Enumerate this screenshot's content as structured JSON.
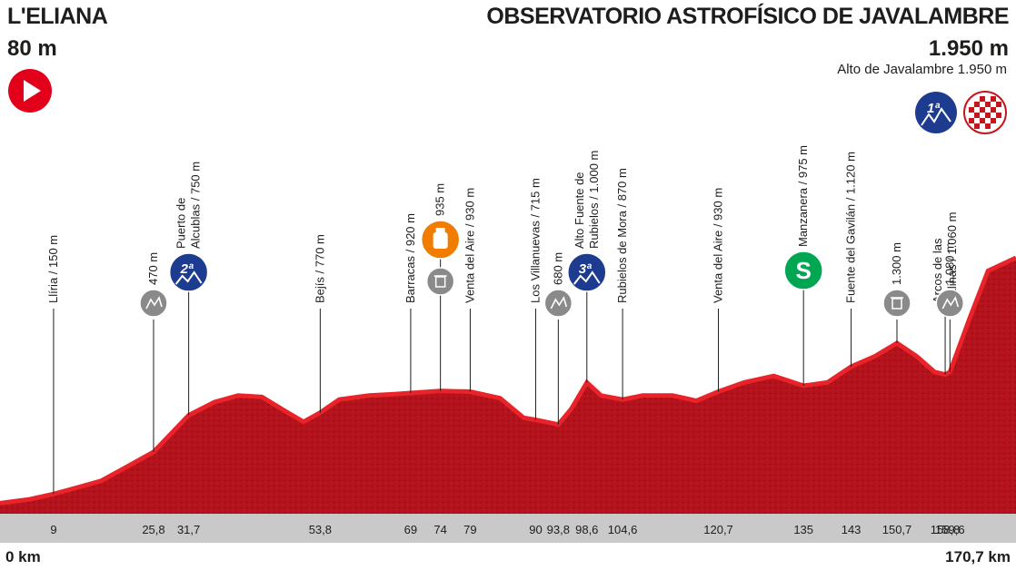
{
  "header": {
    "start_name": "L'ELIANA",
    "start_altitude": "80 m",
    "finish_name": "OBSERVATORIO ASTROFÍSICO DE JAVALAMBRE",
    "finish_altitude": "1.950 m",
    "summit_note": "Alto de Javalambre 1.950 m"
  },
  "colors": {
    "profile_fill": "#b3131c",
    "profile_top": "#e8232a",
    "km_bar": "#c9c9c9",
    "start_marker": "#e2001a",
    "cat_climb": "#1d3c8f",
    "sprint": "#00a651",
    "feed": "#f07d00",
    "gray_marker": "#8a8a8a"
  },
  "axis": {
    "start_label": "0 km",
    "end_label": "170,7 km"
  },
  "chart_data": {
    "type": "area",
    "xlim": [
      0,
      170.7
    ],
    "ylim": [
      0,
      1950
    ],
    "x": [
      0,
      5,
      9,
      13,
      17,
      21,
      25.8,
      31.7,
      36,
      40,
      44,
      48,
      51,
      53.8,
      57,
      62,
      66,
      69,
      74,
      79,
      84,
      88,
      90,
      93.8,
      96,
      98.6,
      101,
      104.6,
      108,
      113,
      117,
      120.7,
      125,
      130,
      135,
      139,
      143,
      147,
      150.7,
      154,
      157,
      158.8,
      159.6,
      163,
      166,
      170.7
    ],
    "y": [
      80,
      110,
      150,
      200,
      250,
      350,
      470,
      750,
      850,
      900,
      890,
      780,
      700,
      770,
      870,
      900,
      910,
      920,
      935,
      930,
      880,
      730,
      715,
      680,
      800,
      1000,
      900,
      870,
      900,
      900,
      860,
      930,
      1000,
      1050,
      975,
      1000,
      1120,
      1200,
      1300,
      1200,
      1080,
      1060,
      1080,
      1500,
      1850,
      1950
    ],
    "x_ticks": [
      "9",
      "25,8",
      "31,7",
      "53,8",
      "69",
      "74",
      "79",
      "90",
      "93,8",
      "98,6",
      "104,6",
      "120,7",
      "135",
      "143",
      "150,7",
      "158,8",
      "159,6"
    ],
    "x_tick_values": [
      9,
      25.8,
      31.7,
      53.8,
      69,
      74,
      79,
      90,
      93.8,
      98.6,
      104.6,
      120.7,
      135,
      143,
      150.7,
      158.8,
      159.6
    ],
    "waypoints": [
      {
        "km": 9,
        "label": "Llíria / 150 m",
        "marker": "none"
      },
      {
        "km": 25.8,
        "label": "470 m",
        "marker": "gray-climb"
      },
      {
        "km": 31.7,
        "label": "Puerto de|Alcublas / 750 m",
        "marker": "cat2"
      },
      {
        "km": 53.8,
        "label": "Bejís / 770 m",
        "marker": "none"
      },
      {
        "km": 69,
        "label": "Barracas / 920 m",
        "marker": "none"
      },
      {
        "km": 74,
        "label": "935 m",
        "marker": "feed"
      },
      {
        "km": 79,
        "label": "Venta del Aire / 930 m",
        "marker": "none"
      },
      {
        "km": 90,
        "label": "Los Villanuevas / 715 m",
        "marker": "none"
      },
      {
        "km": 93.8,
        "label": "680 m",
        "marker": "gray-climb"
      },
      {
        "km": 98.6,
        "label": "Alto Fuente de|Rubielos / 1.000 m",
        "marker": "cat3"
      },
      {
        "km": 104.6,
        "label": "Rubielos de Mora / 870 m",
        "marker": "none"
      },
      {
        "km": 120.7,
        "label": "Venta del Aire / 930 m",
        "marker": "none"
      },
      {
        "km": 135,
        "label": "Manzanera / 975 m",
        "marker": "sprint"
      },
      {
        "km": 143,
        "label": "Fuente del Gavilán / 1.120 m",
        "marker": "none"
      },
      {
        "km": 150.7,
        "label": "1.300 m",
        "marker": "gray-bin"
      },
      {
        "km": 158.8,
        "label": "Arcos de las|Salinas / 1.060 m",
        "marker": "none"
      },
      {
        "km": 159.6,
        "label": "1.080 m",
        "marker": "gray-climb"
      }
    ],
    "badges": {
      "cat2": "2ª",
      "cat3": "3ª",
      "cat1": "1ª",
      "sprint": "S"
    }
  }
}
